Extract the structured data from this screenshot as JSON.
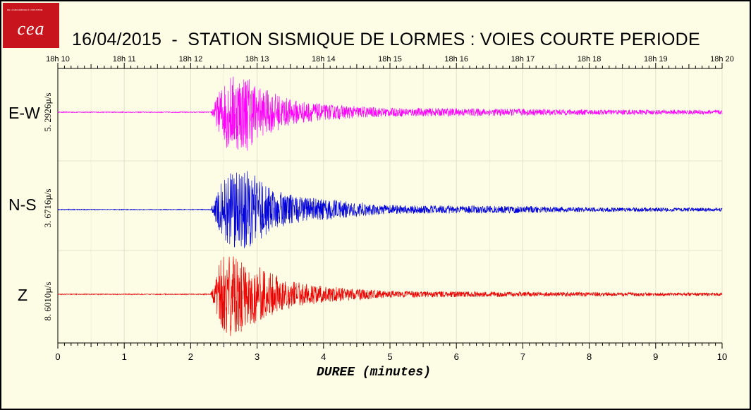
{
  "logo": {
    "text": "cea",
    "tagline": "DE LA RECHERCHE À L'INDUSTRIE",
    "color": "#c8141c"
  },
  "title": "16/04/2015  -  STATION SISMIQUE DE LORMES : VOIES COURTE PERIODE",
  "chart_data": {
    "type": "line",
    "title": "16/04/2015  -  STATION SISMIQUE DE LORMES : VOIES COURTE PERIODE",
    "xlabel": "DUREE (minutes)",
    "xlim": [
      0,
      10
    ],
    "x_ticks": [
      "0",
      "1",
      "2",
      "3",
      "4",
      "5",
      "6",
      "7",
      "8",
      "9",
      "10"
    ],
    "top_axis_ticks": [
      "18h 10",
      "18h 11",
      "18h 12",
      "18h 13",
      "18h 14",
      "18h 15",
      "18h 16",
      "18h 17",
      "18h 18",
      "18h 19",
      "18h 20"
    ],
    "grid": true,
    "event_onset_minute": 2.45,
    "series": [
      {
        "name": "E-W",
        "scale_label": "5. 2926µ/s",
        "color": "#ff00ff",
        "envelope": [
          [
            0,
            0.01
          ],
          [
            2.3,
            0.01
          ],
          [
            2.45,
            0.55
          ],
          [
            2.55,
            0.85
          ],
          [
            2.85,
            0.9
          ],
          [
            3.0,
            0.6
          ],
          [
            3.5,
            0.3
          ],
          [
            4.0,
            0.18
          ],
          [
            5.0,
            0.1
          ],
          [
            7.0,
            0.08
          ],
          [
            8.0,
            0.06
          ],
          [
            10,
            0.05
          ]
        ]
      },
      {
        "name": "N-S",
        "scale_label": "3. 6716µ/s",
        "color": "#0000dd",
        "envelope": [
          [
            0,
            0.01
          ],
          [
            2.3,
            0.01
          ],
          [
            2.45,
            0.6
          ],
          [
            2.6,
            0.85
          ],
          [
            2.9,
            0.9
          ],
          [
            3.2,
            0.5
          ],
          [
            3.6,
            0.3
          ],
          [
            4.3,
            0.2
          ],
          [
            5.0,
            0.1
          ],
          [
            7.0,
            0.08
          ],
          [
            8.0,
            0.05
          ],
          [
            10,
            0.04
          ]
        ]
      },
      {
        "name": "Z",
        "scale_label": "8. 6010µ/s",
        "color": "#ee0000",
        "envelope": [
          [
            0,
            0.01
          ],
          [
            2.3,
            0.01
          ],
          [
            2.45,
            0.75
          ],
          [
            2.6,
            0.9
          ],
          [
            2.8,
            0.75
          ],
          [
            3.2,
            0.45
          ],
          [
            3.6,
            0.25
          ],
          [
            4.2,
            0.15
          ],
          [
            5.0,
            0.07
          ],
          [
            7.0,
            0.05
          ],
          [
            10,
            0.03
          ]
        ]
      }
    ]
  }
}
